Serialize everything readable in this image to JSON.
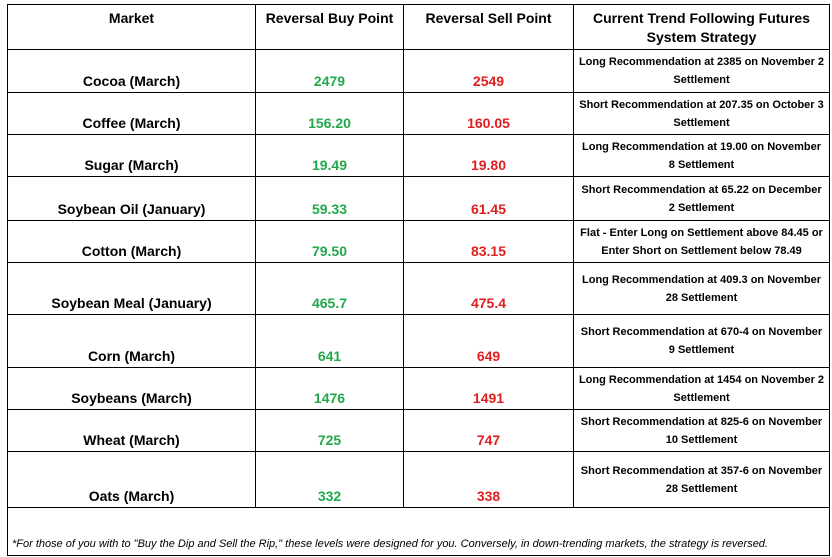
{
  "table": {
    "headers": {
      "market": "Market",
      "buy": "Reversal Buy Point",
      "sell": "Reversal Sell Point",
      "strategy": "Current Trend Following Futures System Strategy"
    },
    "rows": [
      {
        "market": "Cocoa (March)",
        "buy": "2479",
        "sell": "2549",
        "strategy": "Long Recommendation at 2385 on November 2 Settlement"
      },
      {
        "market": "Coffee (March)",
        "buy": "156.20",
        "sell": "160.05",
        "strategy": "Short Recommendation at 207.35 on October 3 Settlement"
      },
      {
        "market": "Sugar (March)",
        "buy": "19.49",
        "sell": "19.80",
        "strategy": "Long Recommendation at 19.00 on November 8 Settlement"
      },
      {
        "market": "Soybean Oil (January)",
        "buy": "59.33",
        "sell": "61.45",
        "strategy": "Short Recommendation at 65.22 on December 2 Settlement"
      },
      {
        "market": "Cotton (March)",
        "buy": "79.50",
        "sell": "83.15",
        "strategy": "Flat - Enter Long on Settlement above 84.45 or Enter Short on Settlement below 78.49"
      },
      {
        "market": "Soybean Meal (January)",
        "buy": "465.7",
        "sell": "475.4",
        "strategy": "Long Recommendation at 409.3 on November 28 Settlement"
      },
      {
        "market": "Corn (March)",
        "buy": "641",
        "sell": "649",
        "strategy": "Short Recommendation at 670-4 on November 9 Settlement"
      },
      {
        "market": "Soybeans (March)",
        "buy": "1476",
        "sell": "1491",
        "strategy": "Long Recommendation at 1454 on November 2 Settlement"
      },
      {
        "market": "Wheat (March)",
        "buy": "725",
        "sell": "747",
        "strategy": "Short Recommendation at 825-6 on November 10 Settlement"
      },
      {
        "market": "Oats (March)",
        "buy": "332",
        "sell": "338",
        "strategy": "Short Recommendation at 357-6 on November 28 Settlement"
      }
    ],
    "footnote": "*For those of you with to \"Buy the Dip and Sell the Rip,\" these levels were designed for you. Conversely, in down-trending markets, the strategy is reversed."
  },
  "colors": {
    "buy": "#22a84b",
    "sell": "#e01e1e"
  }
}
